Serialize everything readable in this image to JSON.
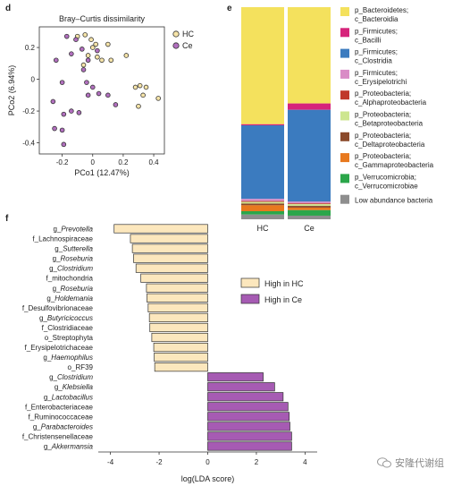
{
  "panels": {
    "d": "d",
    "e": "e",
    "f": "f"
  },
  "watermark": "安隆代谢组",
  "colors": {
    "HC": "#fce7bd",
    "Ce": "#a65bb3",
    "HC_point": "#f6e4a8",
    "Ce_point": "#b16fbe"
  },
  "chart_data": [
    {
      "type": "scatter",
      "title": "Bray–Curtis dissimilarity",
      "xlabel": "PCo1 (12.47%)",
      "ylabel": "PCo2 (6.94%)",
      "xlim": [
        -0.35,
        0.47
      ],
      "ylim": [
        -0.47,
        0.33
      ],
      "xticks": [
        "-0.2",
        "0",
        "0.2",
        "0.4"
      ],
      "xtick_values": [
        -0.2,
        0,
        0.2,
        0.4
      ],
      "yticks": [
        "0.2",
        "0",
        "-0.2",
        "-0.4"
      ],
      "ytick_values": [
        0.2,
        0,
        -0.2,
        -0.4
      ],
      "legend": [
        "HC",
        "Ce"
      ],
      "series": [
        {
          "name": "HC",
          "points": [
            [
              -0.1,
              0.27
            ],
            [
              -0.05,
              0.28
            ],
            [
              -0.01,
              0.25
            ],
            [
              0.02,
              0.22
            ],
            [
              0.1,
              0.22
            ],
            [
              0.03,
              0.14
            ],
            [
              -0.03,
              0.15
            ],
            [
              0.12,
              0.12
            ],
            [
              0.22,
              0.15
            ],
            [
              0.28,
              -0.05
            ],
            [
              0.31,
              -0.04
            ],
            [
              0.35,
              -0.05
            ],
            [
              0.33,
              -0.1
            ],
            [
              0.43,
              -0.12
            ],
            [
              0.3,
              -0.17
            ],
            [
              -0.06,
              0.09
            ],
            [
              0.06,
              0.12
            ],
            [
              0.0,
              0.2
            ]
          ]
        },
        {
          "name": "Ce",
          "points": [
            [
              -0.17,
              0.27
            ],
            [
              -0.11,
              0.25
            ],
            [
              -0.07,
              0.19
            ],
            [
              -0.14,
              0.16
            ],
            [
              -0.24,
              0.12
            ],
            [
              -0.03,
              0.12
            ],
            [
              -0.06,
              0.06
            ],
            [
              0.03,
              0.18
            ],
            [
              -0.04,
              -0.02
            ],
            [
              -0.2,
              -0.02
            ],
            [
              0.0,
              -0.05
            ],
            [
              -0.03,
              -0.1
            ],
            [
              0.04,
              -0.09
            ],
            [
              0.1,
              -0.1
            ],
            [
              0.15,
              -0.16
            ],
            [
              -0.26,
              -0.14
            ],
            [
              -0.19,
              -0.22
            ],
            [
              -0.14,
              -0.2
            ],
            [
              -0.09,
              -0.21
            ],
            [
              -0.2,
              -0.32
            ],
            [
              -0.25,
              -0.31
            ],
            [
              -0.19,
              -0.41
            ]
          ]
        }
      ]
    },
    {
      "type": "bar",
      "stacked": true,
      "categories": [
        "HC",
        "Ce"
      ],
      "series": [
        {
          "name": "p_Bacteroidetes; c_Bacteroidia",
          "color": "#f4e15d",
          "values": [
            55.2,
            45.4
          ]
        },
        {
          "name": "p_Firmicutes; c_Bacilli",
          "color": "#d6247b",
          "values": [
            0.5,
            3.0
          ]
        },
        {
          "name": "p_Firmicutes; c_Clostridia",
          "color": "#3b7bbf",
          "values": [
            34.7,
            43.3
          ]
        },
        {
          "name": "p_Firmicutes; c_Erysipelotrichi",
          "color": "#d98cc6",
          "values": [
            1.0,
            0.8
          ]
        },
        {
          "name": "p_Proteobacteria; c_Alphaproteobacteria",
          "color": "#c0392b",
          "values": [
            0.4,
            0.4
          ]
        },
        {
          "name": "p_Proteobacteria; c_Betaproteobacteria",
          "color": "#cde68f",
          "values": [
            0.8,
            0.8
          ]
        },
        {
          "name": "p_Proteobacteria; c_Deltaproteobacteria",
          "color": "#8b4a2b",
          "values": [
            0.8,
            0.8
          ]
        },
        {
          "name": "p_Proteobacteria; c_Gammaproteobacteria",
          "color": "#e8791e",
          "values": [
            2.8,
            1.2
          ]
        },
        {
          "name": "p_Verrucomicrobia; c_Verrucomicrobiae",
          "color": "#2ba64a",
          "values": [
            1.6,
            2.6
          ]
        },
        {
          "name": "Low abundance bacteria",
          "color": "#8e8e8e",
          "values": [
            2.2,
            1.7
          ]
        }
      ]
    },
    {
      "type": "bar",
      "orientation": "horizontal",
      "xlabel": "log(LDA score)",
      "xlim": [
        -4.5,
        4.5
      ],
      "xticks": [
        "-4",
        "-2",
        "0",
        "2",
        "4"
      ],
      "xtick_values": [
        -4,
        -2,
        0,
        2,
        4
      ],
      "legend": [
        "High in HC",
        "High in Ce"
      ],
      "bars": [
        {
          "prefix": "g_",
          "name": "Prevotella",
          "italic": true,
          "group": "HC",
          "value": -3.85
        },
        {
          "prefix": "f_",
          "name": "Lachnospiraceae",
          "italic": false,
          "group": "HC",
          "value": -3.18
        },
        {
          "prefix": "g_",
          "name": "Sutterella",
          "italic": true,
          "group": "HC",
          "value": -3.1
        },
        {
          "prefix": "g_",
          "name": "Roseburia",
          "italic": true,
          "group": "HC",
          "value": -3.05
        },
        {
          "prefix": "g_",
          "name": "Clostridium",
          "italic": true,
          "group": "HC",
          "value": -2.95
        },
        {
          "prefix": "f_",
          "name": "mitochondria",
          "italic": false,
          "group": "HC",
          "value": -2.75
        },
        {
          "prefix": "g_",
          "name": "Roseburia",
          "italic": true,
          "group": "HC",
          "value": -2.52
        },
        {
          "prefix": "g_",
          "name": "Holdemania",
          "italic": true,
          "group": "HC",
          "value": -2.5
        },
        {
          "prefix": "f_",
          "name": "Desulfovibrionaceae",
          "italic": false,
          "group": "HC",
          "value": -2.45
        },
        {
          "prefix": "g_",
          "name": "Butyricicoccus",
          "italic": true,
          "group": "HC",
          "value": -2.4
        },
        {
          "prefix": "f_",
          "name": "Clostridiaceae",
          "italic": false,
          "group": "HC",
          "value": -2.38
        },
        {
          "prefix": "o_",
          "name": "Streptophyta",
          "italic": false,
          "group": "HC",
          "value": -2.3
        },
        {
          "prefix": "f_",
          "name": "Erysipelotrichaceae",
          "italic": false,
          "group": "HC",
          "value": -2.22
        },
        {
          "prefix": "g_",
          "name": "Haemophilus",
          "italic": true,
          "group": "HC",
          "value": -2.2
        },
        {
          "prefix": "o_",
          "name": "RF39",
          "italic": false,
          "group": "HC",
          "value": -2.18
        },
        {
          "prefix": "g_",
          "name": "Clostridium",
          "italic": true,
          "group": "Ce",
          "value": 2.28
        },
        {
          "prefix": "g_",
          "name": "Klebsiella",
          "italic": true,
          "group": "Ce",
          "value": 2.75
        },
        {
          "prefix": "g_",
          "name": "Lactobacillus",
          "italic": true,
          "group": "Ce",
          "value": 3.1
        },
        {
          "prefix": "f_",
          "name": "Enterobacteriaceae",
          "italic": false,
          "group": "Ce",
          "value": 3.3
        },
        {
          "prefix": "f_",
          "name": "Ruminococcaceae",
          "italic": false,
          "group": "Ce",
          "value": 3.35
        },
        {
          "prefix": "g_",
          "name": "Parabacteroides",
          "italic": true,
          "group": "Ce",
          "value": 3.38
        },
        {
          "prefix": "f_",
          "name": "Christensenellaceae",
          "italic": false,
          "group": "Ce",
          "value": 3.45
        },
        {
          "prefix": "g_",
          "name": "Akkermansia",
          "italic": true,
          "group": "Ce",
          "value": 3.45
        }
      ]
    }
  ]
}
